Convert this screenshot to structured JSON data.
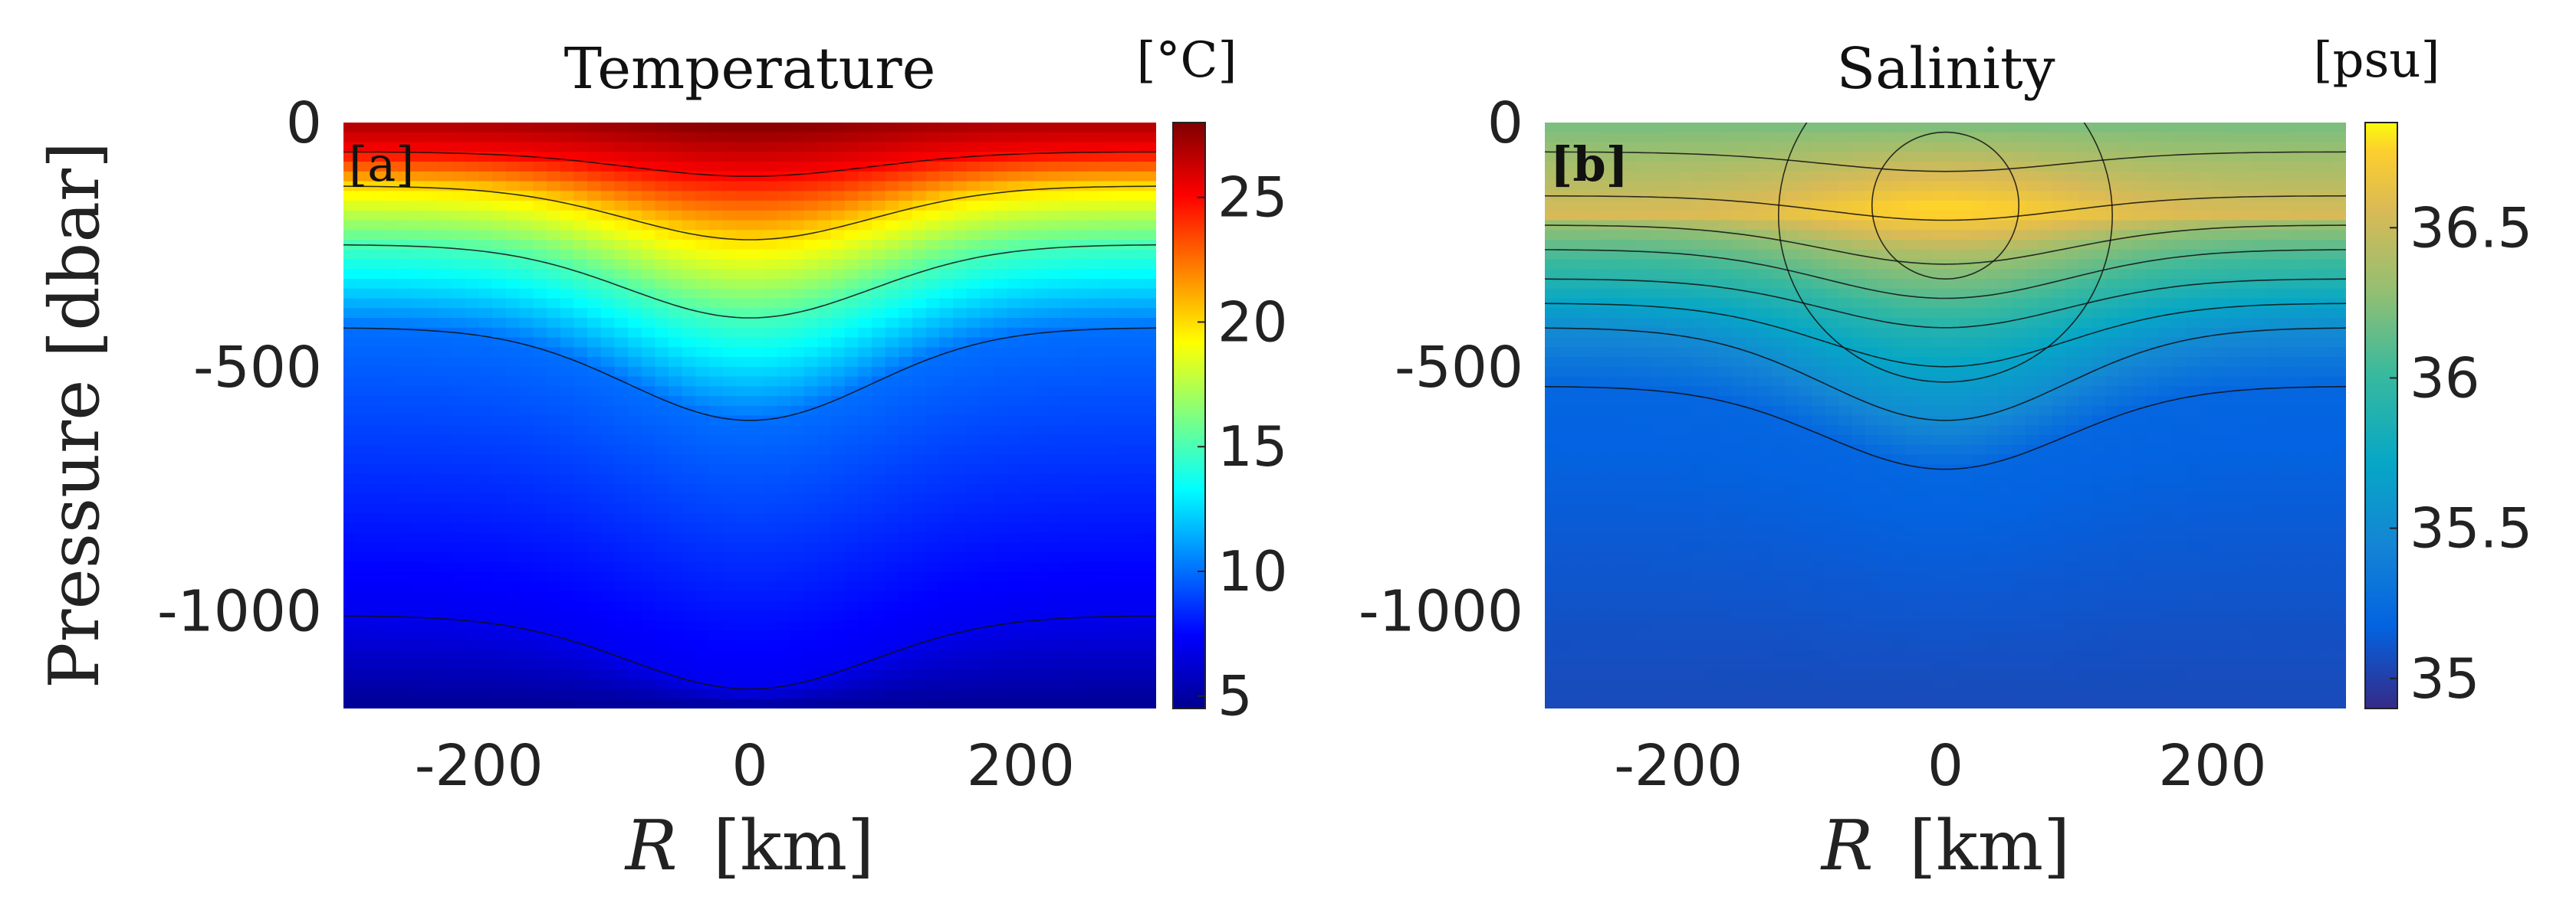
{
  "chart_data": [
    {
      "id": "a",
      "type": "heatmap",
      "subtype": "filled-contour",
      "title": "Temperature",
      "panel_label": "[a]",
      "xlabel_var": "R",
      "xlabel_unit": "[km]",
      "ylabel": "Pressure [dbar]",
      "xlim": [
        -300,
        300
      ],
      "ylim": [
        -1200,
        0
      ],
      "xticks": [
        -200,
        0,
        200
      ],
      "xticklabels": [
        "-200",
        "0",
        "200"
      ],
      "yticks": [
        0,
        -500,
        -1000
      ],
      "yticklabels": [
        "0",
        "-500",
        "-1000"
      ],
      "colorbar": {
        "unit_label": "[°C]",
        "limits": [
          4.5,
          28
        ],
        "ticks": [
          5,
          10,
          15,
          20,
          25
        ],
        "ticklabels": [
          "5",
          "10",
          "15",
          "20",
          "25"
        ],
        "colormap": "jet"
      },
      "field_description": "warm near surface, cooling with depth; isotherms depressed at R=0 (warm-core eddy)",
      "surface_value_edge": 27.0,
      "surface_value_center": 28.0,
      "contour_levels": [
        25,
        20,
        15,
        10,
        7
      ],
      "contour_depths_edge": [
        60,
        130,
        250,
        420,
        1010
      ],
      "contour_depths_center": [
        110,
        240,
        400,
        610,
        1160
      ],
      "eddy_halfwidth_km": 90
    },
    {
      "id": "b",
      "type": "heatmap",
      "subtype": "filled-contour",
      "title": "Salinity",
      "panel_label": "[b]",
      "xlabel_var": "R",
      "xlabel_unit": "[km]",
      "ylabel": "",
      "xlim": [
        -300,
        300
      ],
      "ylim": [
        -1200,
        0
      ],
      "xticks": [
        -200,
        0,
        200
      ],
      "xticklabels": [
        "-200",
        "0",
        "200"
      ],
      "yticks": [
        0,
        -500,
        -1000
      ],
      "yticklabels": [
        "0",
        "-500",
        "-1000"
      ],
      "colorbar": {
        "unit_label": "[psu]",
        "limits": [
          34.9,
          36.85
        ],
        "ticks": [
          35,
          35.5,
          36,
          36.5
        ],
        "ticklabels": [
          "35",
          "35.5",
          "36",
          "36.5"
        ],
        "colormap": "parula"
      },
      "field_description": "subsurface salinity maximum near 180 dbar at R=0, fresher below; isohalines depressed at center",
      "surface_value": 36.2,
      "subsurface_max_value": 36.8,
      "subsurface_max_depth_center": 180,
      "deep_value": 35.05,
      "contour_depths_edge": [
        60,
        150,
        210,
        260,
        320,
        370,
        420,
        540
      ],
      "contour_depths_center": [
        100,
        200,
        290,
        360,
        420,
        500,
        610,
        710
      ],
      "closed_contours_center_depth": [
        190,
        170
      ],
      "eddy_halfwidth_km": 90
    }
  ]
}
